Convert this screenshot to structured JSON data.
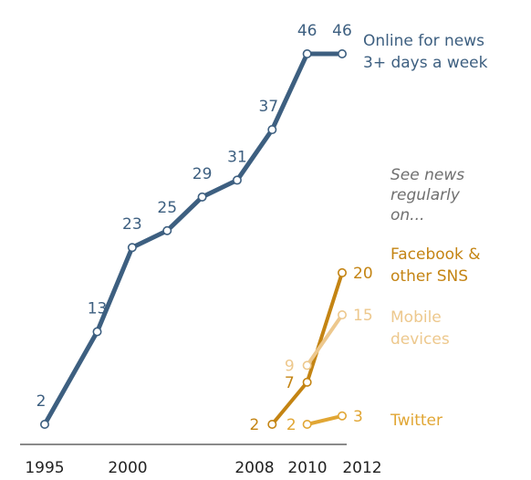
{
  "chart_data": {
    "type": "line",
    "title": "",
    "xlabel": "",
    "ylabel": "",
    "xlim": [
      1995,
      2012
    ],
    "ylim": [
      2,
      46
    ],
    "x_ticks": [
      1995,
      2000,
      2008,
      2010,
      2012
    ],
    "x_tick_labels": [
      "1995",
      "2000",
      "2008",
      "2010",
      "2012"
    ],
    "grid": false,
    "series": [
      {
        "name": "Online for news 3+ days a week",
        "name_lines": [
          "Online for news",
          "3+ days a week"
        ],
        "color": "#3d5f80",
        "x": [
          1995,
          1998,
          2000,
          2002,
          2004,
          2006,
          2008,
          2010,
          2012
        ],
        "values": [
          2,
          13,
          23,
          25,
          29,
          31,
          37,
          46,
          46
        ]
      },
      {
        "name": "Facebook & other SNS",
        "name_lines": [
          "Facebook &",
          "other SNS"
        ],
        "color": "#c48413",
        "x": [
          2008,
          2010,
          2012
        ],
        "values": [
          2,
          7,
          20
        ]
      },
      {
        "name": "Mobile devices",
        "name_lines": [
          "Mobile",
          "devices"
        ],
        "color": "#edc88d",
        "x": [
          2010,
          2012
        ],
        "values": [
          9,
          15
        ]
      },
      {
        "name": "Twitter",
        "name_lines": [
          "Twitter"
        ],
        "color": "#e1a634",
        "x": [
          2010,
          2012
        ],
        "values": [
          2,
          3
        ]
      }
    ],
    "annotations": [
      {
        "text_lines": [
          "See news",
          "regularly",
          "on..."
        ],
        "color": "#707070",
        "style": "italic"
      }
    ]
  }
}
